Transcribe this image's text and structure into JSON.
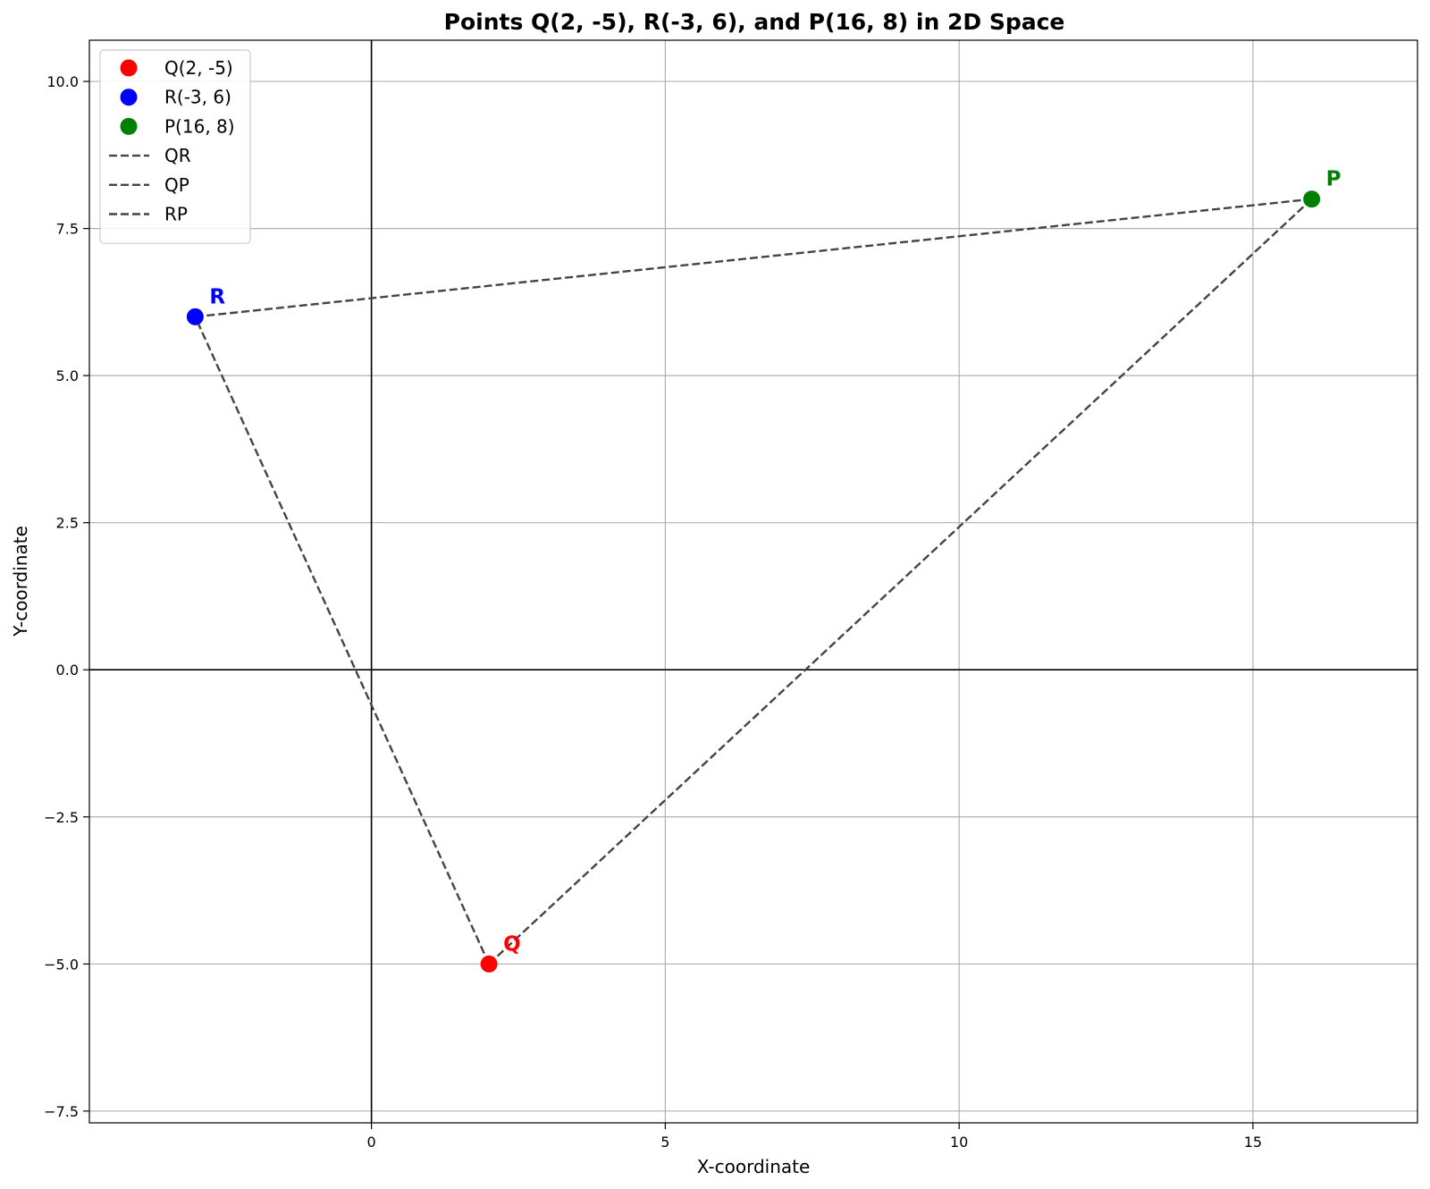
{
  "chart_data": {
    "type": "scatter",
    "title": "Points Q(2, -5), R(-3, 6), and P(16, 8) in 2D Space",
    "xlabel": "X-coordinate",
    "ylabel": "Y-coordinate",
    "xlim": [
      -4.8,
      17.8
    ],
    "ylim": [
      -7.7,
      10.7
    ],
    "xticks": [
      0,
      5,
      10,
      15
    ],
    "xtick_labels": [
      "0",
      "5",
      "10",
      "15"
    ],
    "yticks": [
      -7.5,
      -5.0,
      -2.5,
      0.0,
      2.5,
      5.0,
      7.5,
      10.0
    ],
    "ytick_labels": [
      "−7.5",
      "−5.0",
      "−2.5",
      "0.0",
      "2.5",
      "5.0",
      "7.5",
      "10.0"
    ],
    "grid": true,
    "legend_position": "top-left",
    "points": [
      {
        "name": "Q(2, -5)",
        "label": "Q",
        "x": 2,
        "y": -5,
        "color": "#ff0000"
      },
      {
        "name": "R(-3, 6)",
        "label": "R",
        "x": -3,
        "y": 6,
        "color": "#0000ff"
      },
      {
        "name": "P(16, 8)",
        "label": "P",
        "x": 16,
        "y": 8,
        "color": "#008000"
      }
    ],
    "segments": [
      {
        "name": "QR",
        "from": [
          2,
          -5
        ],
        "to": [
          -3,
          6
        ],
        "color": "#444444",
        "style": "dashed"
      },
      {
        "name": "QP",
        "from": [
          2,
          -5
        ],
        "to": [
          16,
          8
        ],
        "color": "#444444",
        "style": "dashed"
      },
      {
        "name": "RP",
        "from": [
          -3,
          6
        ],
        "to": [
          16,
          8
        ],
        "color": "#444444",
        "style": "dashed"
      }
    ]
  }
}
